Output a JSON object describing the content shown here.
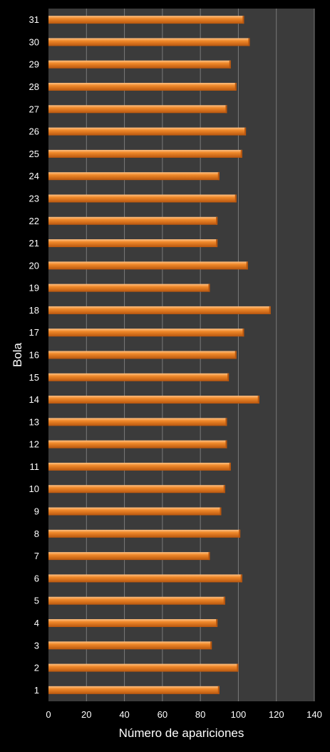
{
  "chart_data": {
    "type": "bar",
    "orientation": "horizontal",
    "xlabel": "Número de apariciones",
    "ylabel": "Bola",
    "xlim": [
      0,
      140
    ],
    "xticks": [
      0,
      20,
      40,
      60,
      80,
      100,
      120,
      140
    ],
    "grid": true,
    "legend": "none",
    "categories": [
      "1",
      "2",
      "3",
      "4",
      "5",
      "6",
      "7",
      "8",
      "9",
      "10",
      "11",
      "12",
      "13",
      "14",
      "15",
      "16",
      "17",
      "18",
      "19",
      "20",
      "21",
      "22",
      "23",
      "24",
      "25",
      "26",
      "27",
      "28",
      "29",
      "30",
      "31"
    ],
    "values": [
      90,
      100,
      86,
      89,
      93,
      102,
      85,
      101,
      91,
      93,
      96,
      94,
      94,
      111,
      95,
      99,
      103,
      117,
      85,
      105,
      89,
      89,
      99,
      90,
      102,
      104,
      94,
      99,
      96,
      106,
      103
    ],
    "colors": {
      "bar": "#f0892a",
      "bar_light": "#ffc183",
      "bar_dark": "#b8560e",
      "plot_background": "#3b3b3b",
      "background": "#000000",
      "gridline": "#7a7a7a",
      "text": "#ffffff"
    }
  }
}
